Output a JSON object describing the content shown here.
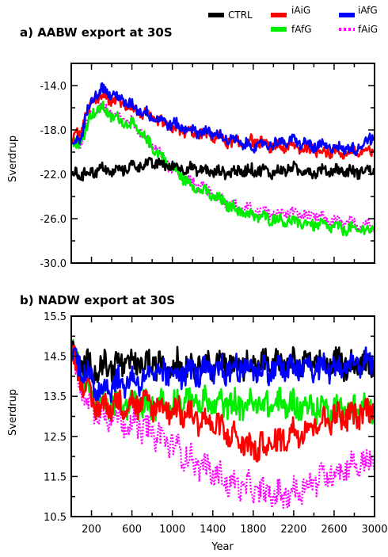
{
  "legend": [
    {
      "name": "CTRL",
      "color": "#000000",
      "style": "solid"
    },
    {
      "name": "iAiG",
      "color": "#ff0000",
      "style": "solid"
    },
    {
      "name": "iAfG",
      "color": "#0000ff",
      "style": "solid"
    },
    {
      "name": "fAfG",
      "color": "#00ee00",
      "style": "solid"
    },
    {
      "name": "fAiG",
      "color": "#ff00ff",
      "style": "dotted"
    }
  ],
  "chart_data": [
    {
      "type": "line",
      "title": "a) AABW export at 30S",
      "xlabel": "",
      "ylabel": "Sverdrup",
      "xlim": [
        0,
        3000
      ],
      "ylim": [
        -30,
        -12
      ],
      "xticks": [
        200,
        600,
        1000,
        1400,
        1800,
        2200,
        2600,
        3000
      ],
      "yticks": [
        -14.0,
        -18.0,
        -22.0,
        -26.0,
        -30.0
      ],
      "ytick_labels": [
        "-14.0",
        "-18.0",
        "-22.0",
        "-26.0",
        "-30.0"
      ],
      "show_xtick_labels": false,
      "x": [
        0,
        100,
        200,
        300,
        400,
        600,
        800,
        1000,
        1200,
        1400,
        1600,
        1800,
        2000,
        2200,
        2400,
        2600,
        2800,
        3000
      ],
      "series": [
        {
          "name": "CTRL",
          "values": [
            -22.0,
            -22.0,
            -21.8,
            -21.5,
            -21.8,
            -21.3,
            -21.0,
            -21.3,
            -21.5,
            -21.8,
            -21.8,
            -21.6,
            -21.8,
            -21.5,
            -21.8,
            -21.6,
            -21.8,
            -21.6
          ]
        },
        {
          "name": "iAiG",
          "values": [
            -19.0,
            -18.0,
            -15.5,
            -15.0,
            -15.2,
            -16.0,
            -17.0,
            -17.8,
            -18.3,
            -18.5,
            -19.2,
            -19.0,
            -19.5,
            -19.5,
            -19.8,
            -20.0,
            -20.0,
            -20.0
          ]
        },
        {
          "name": "iAfG",
          "values": [
            -19.5,
            -18.5,
            -15.0,
            -14.3,
            -14.8,
            -15.8,
            -16.8,
            -17.5,
            -18.0,
            -18.3,
            -19.0,
            -19.5,
            -19.2,
            -19.0,
            -19.5,
            -19.5,
            -19.8,
            -18.5
          ]
        },
        {
          "name": "fAfG",
          "values": [
            -19.5,
            -19.0,
            -16.5,
            -16.0,
            -16.8,
            -17.5,
            -19.5,
            -21.5,
            -23.0,
            -24.0,
            -25.0,
            -25.8,
            -26.0,
            -26.3,
            -26.5,
            -26.8,
            -27.0,
            -27.0
          ]
        },
        {
          "name": "fAiG",
          "values": [
            -19.5,
            -19.0,
            -16.5,
            -15.8,
            -16.5,
            -17.3,
            -19.3,
            -21.5,
            -22.8,
            -23.8,
            -24.8,
            -25.3,
            -25.5,
            -25.5,
            -25.8,
            -26.3,
            -26.5,
            -26.5
          ]
        }
      ]
    },
    {
      "type": "line",
      "title": "b) NADW export at 30S",
      "xlabel": "Year",
      "ylabel": "Sverdrup",
      "xlim": [
        0,
        3000
      ],
      "ylim": [
        10.5,
        15.5
      ],
      "xticks": [
        200,
        600,
        1000,
        1400,
        1800,
        2200,
        2600,
        3000
      ],
      "xtick_labels": [
        "200",
        "600",
        "1000",
        "1400",
        "1800",
        "2200",
        "2600",
        "3000"
      ],
      "yticks": [
        15.5,
        14.5,
        13.5,
        12.5,
        11.5,
        10.5
      ],
      "ytick_labels": [
        "15.5",
        "14.5",
        "13.5",
        "12.5",
        "11.5",
        "10.5"
      ],
      "show_xtick_labels": true,
      "x": [
        0,
        100,
        200,
        300,
        400,
        600,
        800,
        1000,
        1200,
        1400,
        1600,
        1800,
        2000,
        2200,
        2400,
        2600,
        2800,
        3000
      ],
      "series": [
        {
          "name": "CTRL",
          "values": [
            14.5,
            14.3,
            14.2,
            14.2,
            14.3,
            14.3,
            14.3,
            14.3,
            14.3,
            14.3,
            14.3,
            14.3,
            14.3,
            14.3,
            14.3,
            14.3,
            14.3,
            14.3
          ]
        },
        {
          "name": "iAiG",
          "values": [
            14.6,
            14.0,
            13.3,
            13.2,
            13.3,
            13.3,
            13.3,
            13.2,
            13.0,
            12.8,
            12.5,
            12.2,
            12.3,
            12.6,
            12.8,
            13.0,
            13.0,
            13.2
          ]
        },
        {
          "name": "iAfG",
          "values": [
            14.6,
            14.3,
            13.8,
            13.7,
            13.8,
            13.9,
            14.0,
            14.1,
            14.1,
            14.1,
            14.2,
            14.2,
            14.2,
            14.2,
            14.2,
            14.2,
            14.3,
            14.3
          ]
        },
        {
          "name": "fAfG",
          "values": [
            14.6,
            14.2,
            13.5,
            13.3,
            13.3,
            13.3,
            13.3,
            13.3,
            13.4,
            13.3,
            13.3,
            13.3,
            13.3,
            13.3,
            13.2,
            13.2,
            13.2,
            13.2
          ]
        },
        {
          "name": "fAiG",
          "values": [
            14.5,
            13.7,
            13.2,
            13.1,
            13.0,
            12.8,
            12.6,
            12.3,
            11.9,
            11.6,
            11.3,
            11.2,
            11.0,
            11.1,
            11.4,
            11.6,
            11.8,
            11.9
          ]
        }
      ]
    }
  ]
}
